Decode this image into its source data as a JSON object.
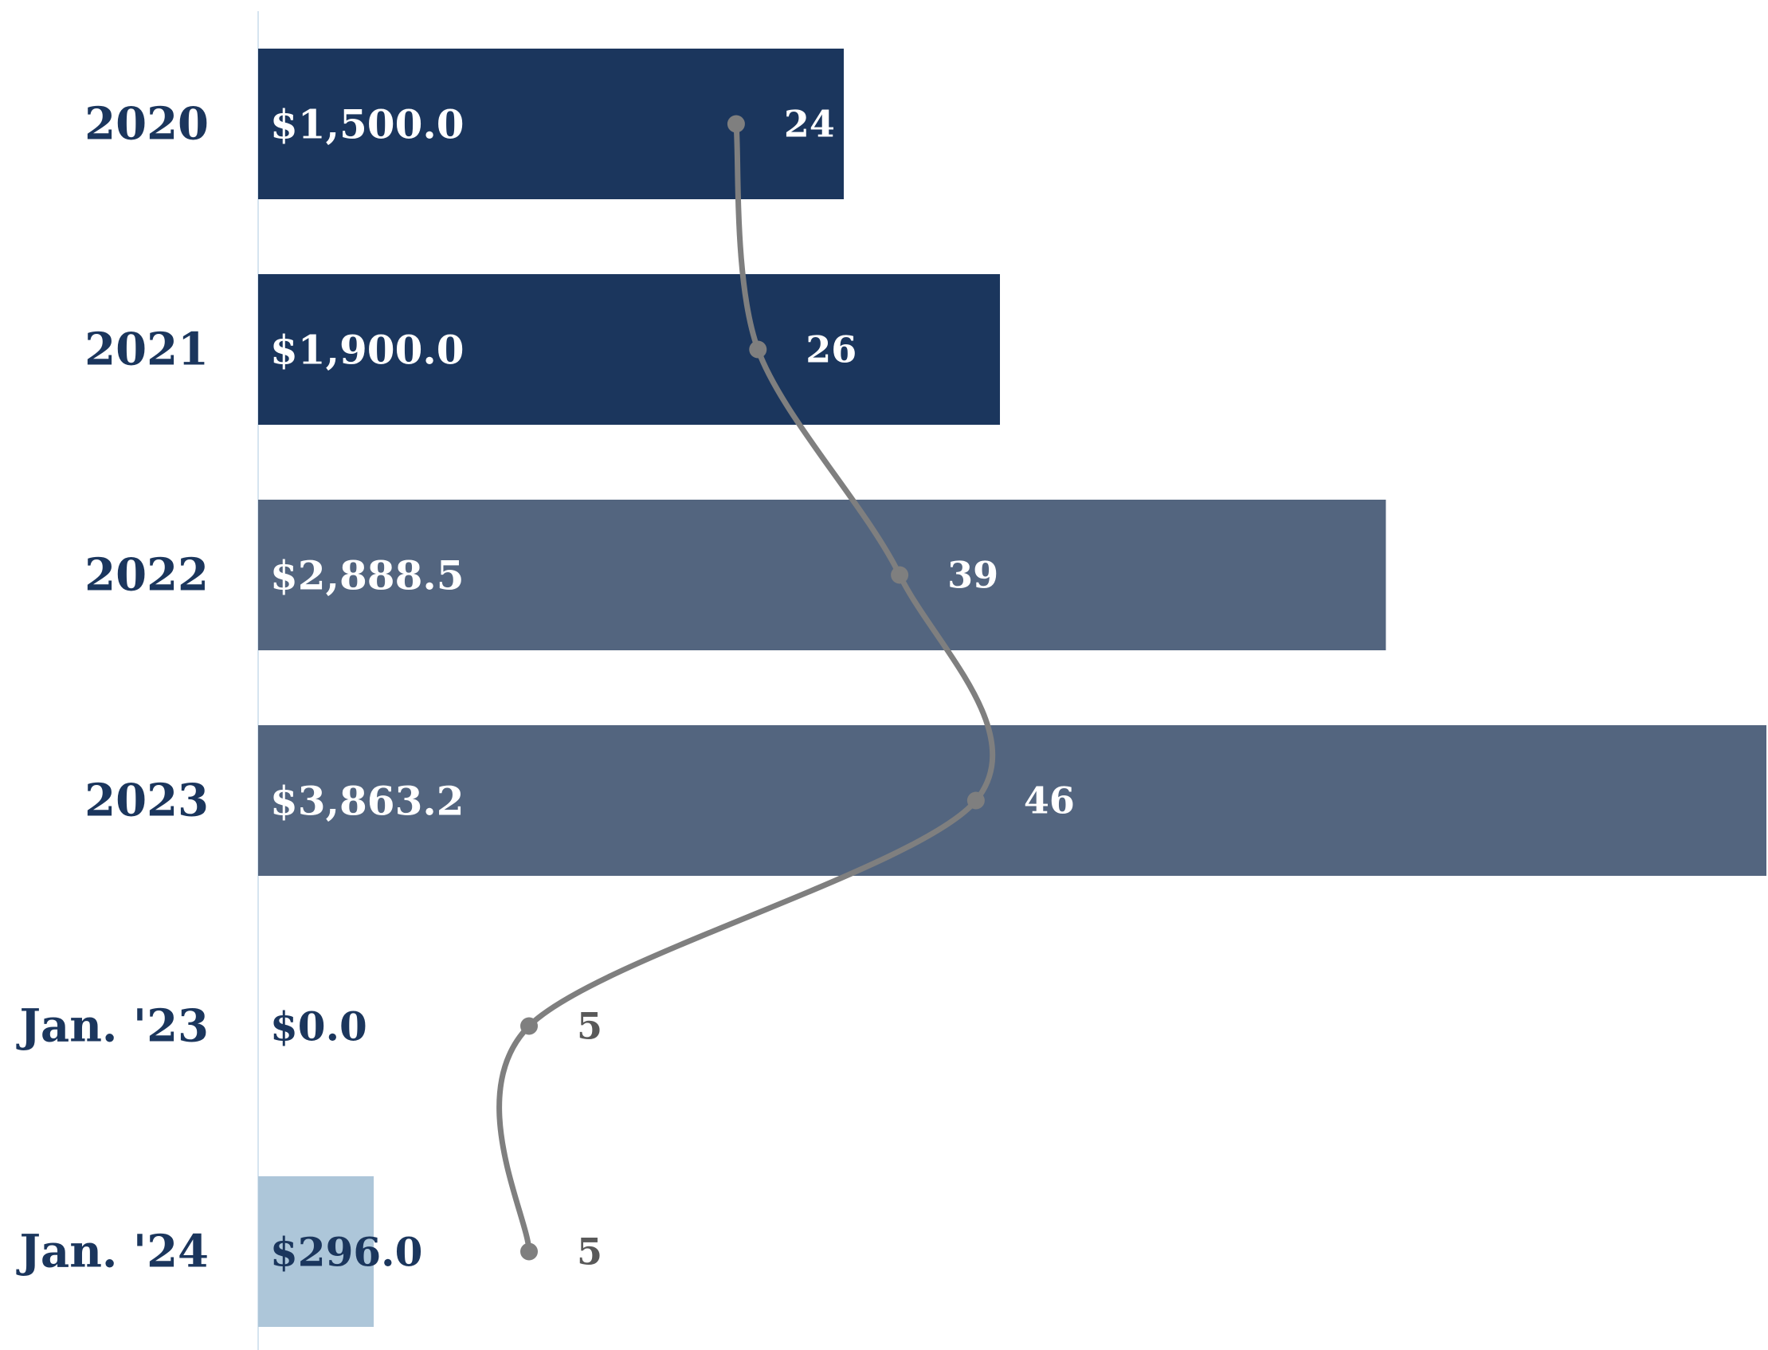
{
  "chart_data": {
    "type": "bar",
    "orientation": "horizontal",
    "categories": [
      "2020",
      "2021",
      "2022",
      "2023",
      "Jan. '23",
      "Jan. '24"
    ],
    "series": [
      {
        "type": "bar",
        "values": [
          1500.0,
          1900.0,
          2888.5,
          3863.2,
          0.0,
          296.0
        ],
        "labels": [
          "$1,500.0",
          "$1,900.0",
          "$2,888.5",
          "$3,863.2",
          "$0.0",
          "$296.0"
        ],
        "colors": [
          "#1b365d",
          "#1b365d",
          "#53657f",
          "#53657f",
          "#1b365d",
          "#adc6d9"
        ]
      },
      {
        "type": "line",
        "values": [
          24,
          26,
          39,
          46,
          5,
          5
        ],
        "labels": [
          "24",
          "26",
          "39",
          "46",
          "5",
          "5"
        ],
        "color": "#7f7f7f"
      }
    ],
    "xlim": [
      0,
      3863.2
    ],
    "grid": false,
    "legend": "none",
    "colors": {
      "category_text": "#1b365d",
      "label_on_dark": "#ffffff",
      "label_outside": "#1b365d",
      "line_label_outside": "#595959",
      "axis_line": "#d6e4f0"
    }
  }
}
